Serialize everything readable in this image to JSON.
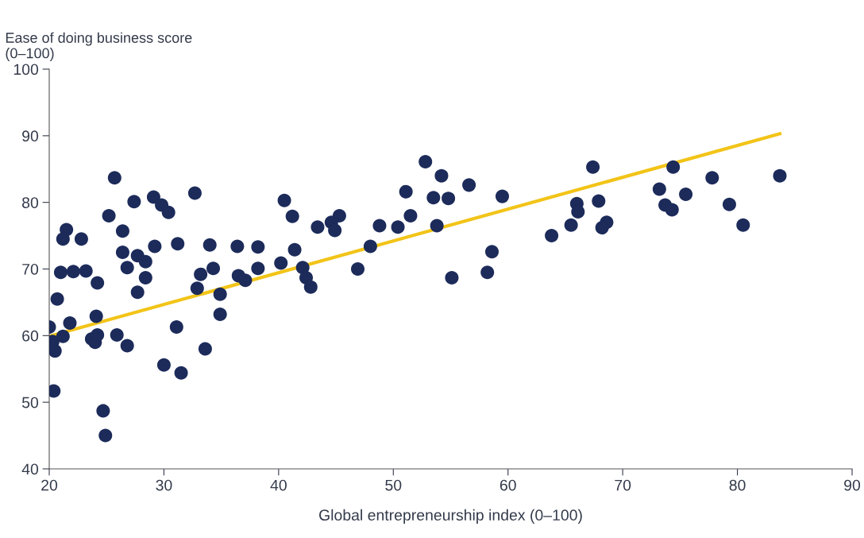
{
  "chart_data": {
    "type": "scatter",
    "xlabel": "Global entrepreneurship index (0–100)",
    "ylabel": "Ease of doing business score\n(0–100)",
    "xlim": [
      20,
      90
    ],
    "xticks": [
      20,
      30,
      40,
      50,
      60,
      70,
      80,
      90
    ],
    "ylim": [
      40,
      100
    ],
    "yticks": [
      40,
      50,
      60,
      70,
      80,
      90,
      100
    ],
    "grid": false,
    "legend": false,
    "marker": "circle",
    "series": [
      {
        "color": "#1c2b5a",
        "x": [
          25.7,
          27.4,
          29.1,
          29.8,
          30.4,
          32.7,
          25.2,
          21.5,
          21.2,
          22.8,
          26.4,
          26.4,
          29.2,
          31.2,
          34.0,
          36.4,
          38.2,
          27.7,
          28.4,
          26.8,
          21.0,
          22.1,
          23.2,
          28.4,
          24.2,
          27.7,
          34.3,
          33.2,
          32.9,
          34.9,
          34.9,
          36.5,
          37.1,
          38.2,
          20.7,
          20.0,
          21.8,
          24.1,
          20.3,
          20.5,
          21.2,
          23.7,
          24.0,
          24.2,
          25.9,
          26.8,
          31.1,
          33.6,
          30.0,
          31.5,
          20.4,
          24.7,
          24.9,
          40.5,
          41.2,
          41.4,
          40.2,
          42.1,
          42.4,
          42.8,
          43.4,
          44.6,
          44.9,
          45.3,
          46.9,
          48.0,
          48.8,
          50.4,
          51.1,
          51.5,
          52.8,
          54.2,
          53.5,
          54.8,
          53.8,
          56.6,
          59.5,
          55.1,
          58.6,
          58.2,
          67.4,
          63.8,
          66.0,
          66.1,
          65.5,
          67.9,
          68.6,
          68.2,
          74.4,
          73.2,
          75.5,
          73.7,
          74.3,
          77.8,
          79.3,
          80.5,
          83.7
        ],
        "values": [
          83.7,
          80.1,
          80.8,
          79.6,
          78.5,
          81.4,
          78.0,
          75.9,
          74.5,
          74.5,
          75.7,
          72.5,
          73.4,
          73.8,
          73.6,
          73.4,
          73.3,
          72.0,
          71.1,
          70.2,
          69.5,
          69.6,
          69.7,
          68.7,
          67.9,
          66.5,
          70.1,
          69.2,
          67.1,
          66.2,
          63.2,
          69.0,
          68.3,
          70.1,
          65.5,
          61.3,
          61.9,
          62.9,
          59.1,
          57.7,
          59.9,
          59.5,
          59.0,
          60.1,
          60.1,
          58.5,
          61.3,
          58.0,
          55.6,
          54.4,
          51.7,
          48.7,
          45.0,
          80.3,
          77.9,
          72.9,
          70.9,
          70.2,
          68.7,
          67.3,
          76.3,
          77.0,
          75.8,
          78.0,
          70.0,
          73.4,
          76.5,
          76.3,
          81.6,
          78.0,
          86.1,
          84.0,
          80.7,
          80.6,
          76.5,
          82.6,
          80.9,
          68.7,
          72.6,
          69.5,
          85.3,
          75.0,
          79.8,
          78.6,
          76.6,
          80.2,
          77.0,
          76.2,
          85.3,
          82.0,
          81.2,
          79.6,
          78.9,
          83.7,
          79.7,
          76.6,
          84.0
        ]
      },
      {
        "type": "line",
        "color": "#f2c418",
        "marker": "none",
        "x": [
          20,
          83.7
        ],
        "values": [
          59.9,
          90.3
        ]
      }
    ]
  }
}
